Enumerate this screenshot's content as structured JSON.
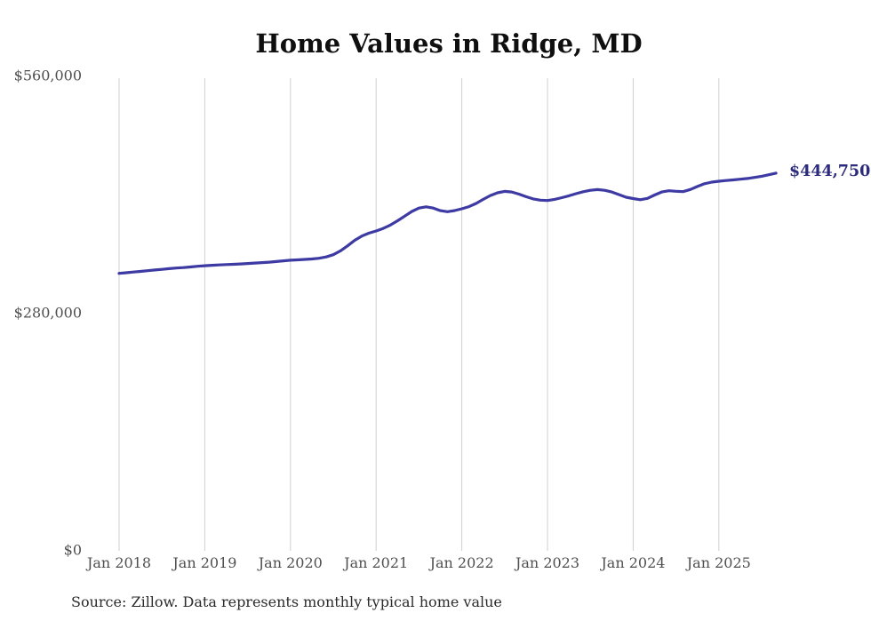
{
  "chart_data": {
    "type": "line",
    "title": "Home Values in Ridge, MD",
    "source": "Source: Zillow. Data represents monthly typical home value",
    "end_label": "$444,750",
    "end_value": 444750,
    "xlabel": "",
    "ylabel": "",
    "ylim": [
      0,
      560000
    ],
    "grid": "vertical-only",
    "legend": "none",
    "y_ticks": [
      {
        "value": 0,
        "label": "$0"
      },
      {
        "value": 280000,
        "label": "$280,000"
      },
      {
        "value": 560000,
        "label": "$560,000"
      }
    ],
    "x_ticks": [
      "Jan 2018",
      "Jan 2019",
      "Jan 2020",
      "Jan 2021",
      "Jan 2022",
      "Jan 2023",
      "Jan 2024",
      "Jan 2025"
    ],
    "series": [
      {
        "name": "Typical home value",
        "start_month": "2018-01",
        "end_month": "2025-09",
        "interval": "monthly",
        "values": [
          326500,
          327200,
          328000,
          328800,
          329600,
          330400,
          331200,
          332000,
          332700,
          333300,
          334000,
          334800,
          335500,
          336000,
          336400,
          336800,
          337200,
          337600,
          338100,
          338600,
          339100,
          339700,
          340400,
          341200,
          342000,
          342400,
          342900,
          343400,
          344300,
          345900,
          348500,
          353000,
          359000,
          365500,
          370500,
          374000,
          376500,
          379500,
          383500,
          388500,
          394000,
          399500,
          403500,
          405000,
          403500,
          400500,
          399200,
          400600,
          402700,
          405200,
          409000,
          413800,
          418300,
          421600,
          423300,
          422500,
          420000,
          417000,
          414300,
          412900,
          412500,
          413800,
          415800,
          418000,
          420500,
          422800,
          424500,
          425400,
          424500,
          422500,
          419500,
          416300,
          414800,
          413400,
          415000,
          419000,
          422500,
          424000,
          423400,
          422900,
          425500,
          429000,
          432300,
          434200,
          435200,
          436000,
          436800,
          437600,
          438500,
          439700,
          441100,
          442900,
          444750
        ]
      }
    ],
    "colors": {
      "line": "#3d3aa3",
      "end_label": "#2c2b7c",
      "gridline": "#cfcfcf",
      "tick_text": "#4f4f4f",
      "title_text": "#0f0f0f",
      "source_text": "#2b2b2b",
      "background": "#ffffff"
    }
  }
}
